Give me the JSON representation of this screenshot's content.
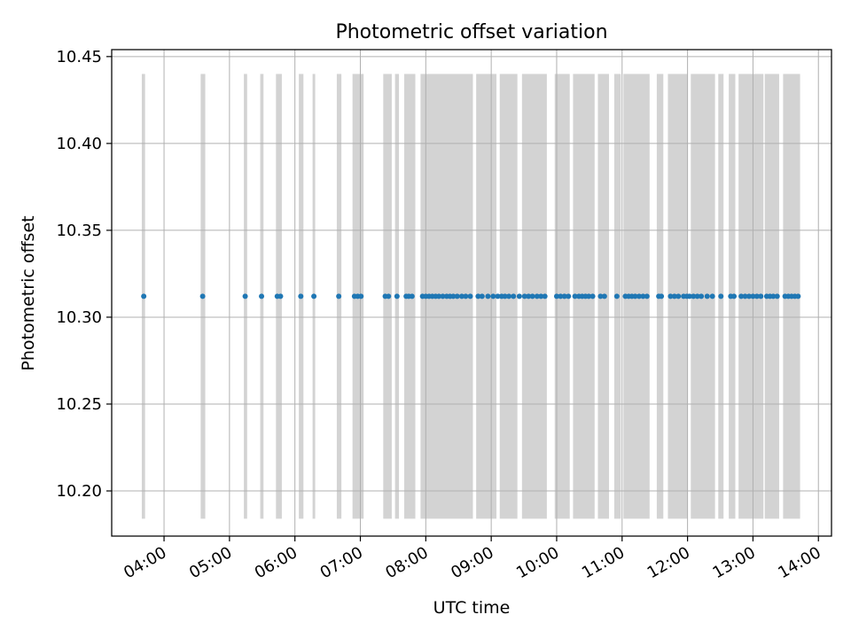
{
  "chart_data": {
    "type": "scatter",
    "title": "Photometric offset variation",
    "xlabel": "UTC time",
    "ylabel": "Photometric offset",
    "x_unit": "hours UTC",
    "xlim": [
      3.2,
      14.2
    ],
    "ylim": [
      10.174,
      10.454
    ],
    "x_ticks": [
      {
        "value": 4,
        "label": "04:00"
      },
      {
        "value": 5,
        "label": "05:00"
      },
      {
        "value": 6,
        "label": "06:00"
      },
      {
        "value": 7,
        "label": "07:00"
      },
      {
        "value": 8,
        "label": "08:00"
      },
      {
        "value": 9,
        "label": "09:00"
      },
      {
        "value": 10,
        "label": "10:00"
      },
      {
        "value": 11,
        "label": "11:00"
      },
      {
        "value": 12,
        "label": "12:00"
      },
      {
        "value": 13,
        "label": "13:00"
      },
      {
        "value": 14,
        "label": "14:00"
      }
    ],
    "y_ticks": [
      {
        "value": 10.2,
        "label": "10.20"
      },
      {
        "value": 10.25,
        "label": "10.25"
      },
      {
        "value": 10.3,
        "label": "10.30"
      },
      {
        "value": 10.35,
        "label": "10.35"
      },
      {
        "value": 10.4,
        "label": "10.40"
      },
      {
        "value": 10.45,
        "label": "10.45"
      }
    ],
    "grid": true,
    "band_range": [
      10.184,
      10.44
    ],
    "bands": [
      [
        3.66,
        3.71
      ],
      [
        4.56,
        4.63
      ],
      [
        5.22,
        5.27
      ],
      [
        5.47,
        5.52
      ],
      [
        5.71,
        5.8
      ],
      [
        6.06,
        6.13
      ],
      [
        6.27,
        6.31
      ],
      [
        6.64,
        6.71
      ],
      [
        6.88,
        7.05
      ],
      [
        7.35,
        7.48
      ],
      [
        7.53,
        7.59
      ],
      [
        7.67,
        7.84
      ],
      [
        7.92,
        8.72
      ],
      [
        8.77,
        9.08
      ],
      [
        9.13,
        9.4
      ],
      [
        9.47,
        9.85
      ],
      [
        9.97,
        10.2
      ],
      [
        10.25,
        10.58
      ],
      [
        10.63,
        10.8
      ],
      [
        10.88,
        10.98
      ],
      [
        11.02,
        11.42
      ],
      [
        11.53,
        11.63
      ],
      [
        11.7,
        12.0
      ],
      [
        12.05,
        12.42
      ],
      [
        12.47,
        12.55
      ],
      [
        12.63,
        12.73
      ],
      [
        12.78,
        13.16
      ],
      [
        13.18,
        13.4
      ],
      [
        13.46,
        13.72
      ]
    ],
    "series": [
      {
        "color": "#1f77b4",
        "band_color": "#d3d3d3",
        "points": [
          [
            3.69,
            10.312
          ],
          [
            4.59,
            10.312
          ],
          [
            5.24,
            10.312
          ],
          [
            5.49,
            10.312
          ],
          [
            5.73,
            10.312
          ],
          [
            5.78,
            10.312
          ],
          [
            6.09,
            10.312
          ],
          [
            6.29,
            10.312
          ],
          [
            6.67,
            10.312
          ],
          [
            6.91,
            10.312
          ],
          [
            6.96,
            10.312
          ],
          [
            7.01,
            10.312
          ],
          [
            7.38,
            10.312
          ],
          [
            7.43,
            10.312
          ],
          [
            7.56,
            10.312
          ],
          [
            7.7,
            10.312
          ],
          [
            7.74,
            10.312
          ],
          [
            7.79,
            10.312
          ],
          [
            7.95,
            10.312
          ],
          [
            8.0,
            10.312
          ],
          [
            8.05,
            10.312
          ],
          [
            8.1,
            10.312
          ],
          [
            8.15,
            10.312
          ],
          [
            8.2,
            10.312
          ],
          [
            8.26,
            10.312
          ],
          [
            8.32,
            10.312
          ],
          [
            8.37,
            10.312
          ],
          [
            8.42,
            10.312
          ],
          [
            8.48,
            10.312
          ],
          [
            8.55,
            10.312
          ],
          [
            8.61,
            10.312
          ],
          [
            8.68,
            10.312
          ],
          [
            8.8,
            10.312
          ],
          [
            8.86,
            10.312
          ],
          [
            8.95,
            10.312
          ],
          [
            9.03,
            10.312
          ],
          [
            9.1,
            10.312
          ],
          [
            9.16,
            10.312
          ],
          [
            9.21,
            10.312
          ],
          [
            9.27,
            10.312
          ],
          [
            9.34,
            10.312
          ],
          [
            9.43,
            10.312
          ],
          [
            9.51,
            10.312
          ],
          [
            9.57,
            10.312
          ],
          [
            9.63,
            10.312
          ],
          [
            9.7,
            10.312
          ],
          [
            9.76,
            10.312
          ],
          [
            9.82,
            10.312
          ],
          [
            10.0,
            10.312
          ],
          [
            10.06,
            10.312
          ],
          [
            10.12,
            10.312
          ],
          [
            10.18,
            10.312
          ],
          [
            10.28,
            10.312
          ],
          [
            10.34,
            10.312
          ],
          [
            10.39,
            10.312
          ],
          [
            10.44,
            10.312
          ],
          [
            10.49,
            10.312
          ],
          [
            10.55,
            10.312
          ],
          [
            10.67,
            10.312
          ],
          [
            10.73,
            10.312
          ],
          [
            10.92,
            10.312
          ],
          [
            11.05,
            10.312
          ],
          [
            11.1,
            10.312
          ],
          [
            11.15,
            10.312
          ],
          [
            11.2,
            10.312
          ],
          [
            11.26,
            10.312
          ],
          [
            11.32,
            10.312
          ],
          [
            11.38,
            10.312
          ],
          [
            11.56,
            10.312
          ],
          [
            11.6,
            10.312
          ],
          [
            11.74,
            10.312
          ],
          [
            11.8,
            10.312
          ],
          [
            11.86,
            10.312
          ],
          [
            11.94,
            10.312
          ],
          [
            11.99,
            10.312
          ],
          [
            12.03,
            10.312
          ],
          [
            12.09,
            10.312
          ],
          [
            12.15,
            10.312
          ],
          [
            12.21,
            10.312
          ],
          [
            12.3,
            10.312
          ],
          [
            12.38,
            10.312
          ],
          [
            12.51,
            10.312
          ],
          [
            12.66,
            10.312
          ],
          [
            12.71,
            10.312
          ],
          [
            12.82,
            10.312
          ],
          [
            12.88,
            10.312
          ],
          [
            12.94,
            10.312
          ],
          [
            13.0,
            10.312
          ],
          [
            13.06,
            10.312
          ],
          [
            13.12,
            10.312
          ],
          [
            13.21,
            10.312
          ],
          [
            13.26,
            10.312
          ],
          [
            13.31,
            10.312
          ],
          [
            13.37,
            10.312
          ],
          [
            13.49,
            10.312
          ],
          [
            13.54,
            10.312
          ],
          [
            13.59,
            10.312
          ],
          [
            13.64,
            10.312
          ],
          [
            13.69,
            10.312
          ]
        ]
      }
    ]
  }
}
